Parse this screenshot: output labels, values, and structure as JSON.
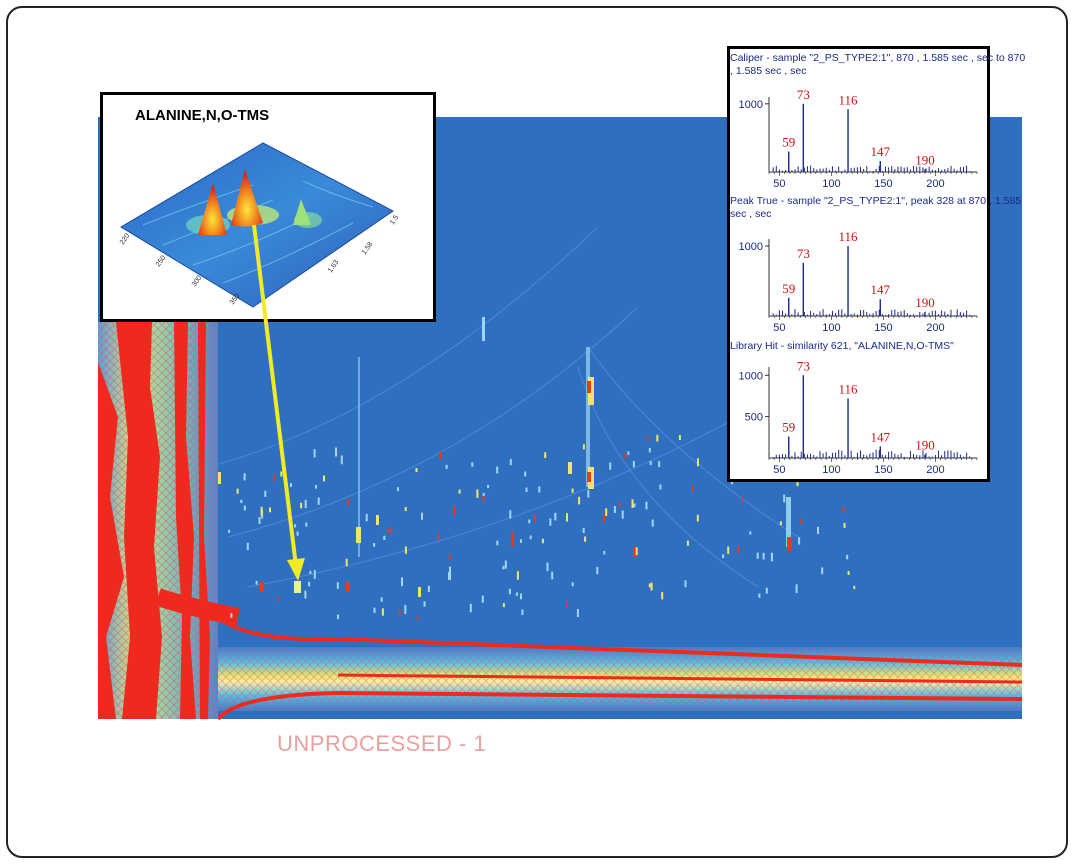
{
  "compound_label": "ALANINE,N,O-TMS",
  "watermark": "UNPROCESSED - 1",
  "colors": {
    "background": "#2f6fc0",
    "hot": "#ee2a1f",
    "warm": "#f0e060",
    "arrow": "#f2ea23",
    "spectrum_line": "#1a2a8a",
    "peak_label": "#cc1111",
    "header_text": "#1a2a8a"
  },
  "chart_data": [
    {
      "type": "heatmap",
      "title": "",
      "xlabel": "",
      "ylabel": "",
      "grid": false,
      "annotation": "UNPROCESSED - 1"
    },
    {
      "type": "bar",
      "title": "Caliper - sample \"2_PS_TYPE2:1\", 870 , 1.585 sec , sec to 870 , 1.585 sec , sec",
      "x_ticks": [
        50,
        100,
        150,
        200
      ],
      "y_ticks": [
        1000
      ],
      "xlim": [
        40,
        240
      ],
      "ylim": [
        0,
        1100
      ],
      "peaks": [
        {
          "mz": 59,
          "intensity": 300,
          "label": "59"
        },
        {
          "mz": 73,
          "intensity": 1000,
          "label": "73"
        },
        {
          "mz": 116,
          "intensity": 920,
          "label": "116"
        },
        {
          "mz": 147,
          "intensity": 160,
          "label": "147"
        },
        {
          "mz": 190,
          "intensity": 40,
          "label": "190"
        }
      ]
    },
    {
      "type": "bar",
      "title": "Peak True - sample \"2_PS_TYPE2:1\", peak 328 at 870 , 1.585 sec , sec",
      "x_ticks": [
        50,
        100,
        150,
        200
      ],
      "y_ticks": [
        1000
      ],
      "xlim": [
        40,
        240
      ],
      "ylim": [
        0,
        1100
      ],
      "peaks": [
        {
          "mz": 59,
          "intensity": 260,
          "label": "59"
        },
        {
          "mz": 73,
          "intensity": 760,
          "label": "73"
        },
        {
          "mz": 116,
          "intensity": 1000,
          "label": "116"
        },
        {
          "mz": 147,
          "intensity": 240,
          "label": "147"
        },
        {
          "mz": 190,
          "intensity": 60,
          "label": "190"
        }
      ]
    },
    {
      "type": "bar",
      "title": "Library Hit - similarity 621, \"ALANINE,N,O-TMS\"",
      "x_ticks": [
        50,
        100,
        150,
        200
      ],
      "y_ticks": [
        500,
        1000
      ],
      "xlim": [
        40,
        240
      ],
      "ylim": [
        0,
        1100
      ],
      "peaks": [
        {
          "mz": 59,
          "intensity": 260,
          "label": "59"
        },
        {
          "mz": 73,
          "intensity": 1000,
          "label": "73"
        },
        {
          "mz": 116,
          "intensity": 720,
          "label": "116"
        },
        {
          "mz": 147,
          "intensity": 140,
          "label": "147"
        },
        {
          "mz": 190,
          "intensity": 40,
          "label": "190"
        }
      ]
    }
  ]
}
